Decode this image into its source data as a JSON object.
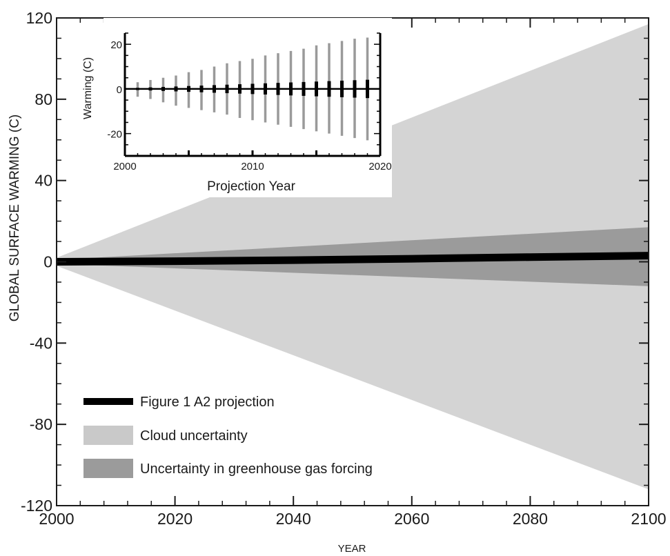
{
  "chart_data": [
    {
      "type": "area",
      "title": "",
      "xlabel": "YEAR",
      "ylabel": "GLOBAL SURFACE WARMING (C)",
      "xlim": [
        2000,
        2100
      ],
      "ylim": [
        -120,
        120
      ],
      "xticks": [
        2000,
        2020,
        2040,
        2060,
        2080,
        2100
      ],
      "yticks": [
        -120,
        -80,
        -40,
        0,
        40,
        80,
        120
      ],
      "x_tick_labels": [
        "2000",
        "2020",
        "2040",
        "2060",
        "2080",
        "2100"
      ],
      "y_tick_labels": [
        "-120",
        "-80",
        "-40",
        "0",
        "40",
        "80",
        "120"
      ],
      "grid": false,
      "legend_position": "bottom-left",
      "series": [
        {
          "name": "Cloud uncertainty",
          "kind": "band",
          "color": "#d4d4d4",
          "x": [
            2000,
            2100
          ],
          "upper": [
            2,
            117
          ],
          "lower": [
            -2,
            -112
          ]
        },
        {
          "name": "Uncertainty in greenhouse gas forcing",
          "kind": "band",
          "color": "#9b9b9b",
          "x": [
            2000,
            2100
          ],
          "upper": [
            1,
            17
          ],
          "lower": [
            -1,
            -12
          ]
        },
        {
          "name": "Figure 1 A2 projection",
          "kind": "line",
          "color": "#000000",
          "x": [
            2000,
            2020,
            2040,
            2060,
            2080,
            2100
          ],
          "y": [
            0,
            0.3,
            0.8,
            1.5,
            2.3,
            3
          ]
        }
      ],
      "legend": [
        {
          "label": "Figure 1 A2 projection",
          "color": "#000000"
        },
        {
          "label": "Cloud uncertainty",
          "color": "#d4d4d4"
        },
        {
          "label": "Uncertainty in greenhouse gas forcing",
          "color": "#9b9b9b"
        }
      ]
    },
    {
      "type": "bar",
      "title": "",
      "xlabel": "Projection Year",
      "ylabel": "Warming (C)",
      "xlim": [
        2000,
        2020
      ],
      "ylim": [
        -30,
        25
      ],
      "xticks": [
        2000,
        2010,
        2020
      ],
      "yticks": [
        -20,
        0,
        20
      ],
      "x_tick_labels": [
        "2000",
        "2010",
        "2020"
      ],
      "y_tick_labels": [
        "-20",
        "0",
        "20"
      ],
      "grid": false,
      "series": [
        {
          "name": "",
          "kind": "error_bars",
          "color": "#9a9a9a",
          "x": [
            2001,
            2002,
            2003,
            2004,
            2005,
            2006,
            2007,
            2008,
            2009,
            2010,
            2011,
            2012,
            2013,
            2014,
            2015,
            2016,
            2017,
            2018,
            2019
          ],
          "upper": [
            3,
            4,
            5,
            6,
            7.5,
            8.5,
            10,
            11.5,
            12.5,
            13.5,
            15,
            16,
            17,
            18,
            19.5,
            20.5,
            21.5,
            22.5,
            23
          ],
          "lower": [
            -3.5,
            -4.5,
            -6,
            -7.5,
            -8.5,
            -9.5,
            -10.5,
            -11.5,
            -13,
            -14,
            -15,
            -16,
            -17,
            -18,
            -19,
            -20,
            -21,
            -22,
            -23
          ]
        },
        {
          "name": "",
          "kind": "error_bars",
          "color": "#000000",
          "x": [
            2001,
            2002,
            2003,
            2004,
            2005,
            2006,
            2007,
            2008,
            2009,
            2010,
            2011,
            2012,
            2013,
            2014,
            2015,
            2016,
            2017,
            2018,
            2019
          ],
          "upper": [
            0.5,
            0.7,
            0.9,
            1.1,
            1.3,
            1.5,
            1.7,
            1.9,
            2.1,
            2.3,
            2.5,
            2.7,
            2.9,
            3.1,
            3.3,
            3.5,
            3.7,
            3.9,
            4.1
          ],
          "lower": [
            -0.5,
            -0.7,
            -0.9,
            -1.1,
            -1.3,
            -1.5,
            -1.7,
            -1.9,
            -2.1,
            -2.3,
            -2.5,
            -2.7,
            -2.9,
            -3.1,
            -3.3,
            -3.5,
            -3.7,
            -3.9,
            -4.1
          ]
        }
      ]
    }
  ]
}
